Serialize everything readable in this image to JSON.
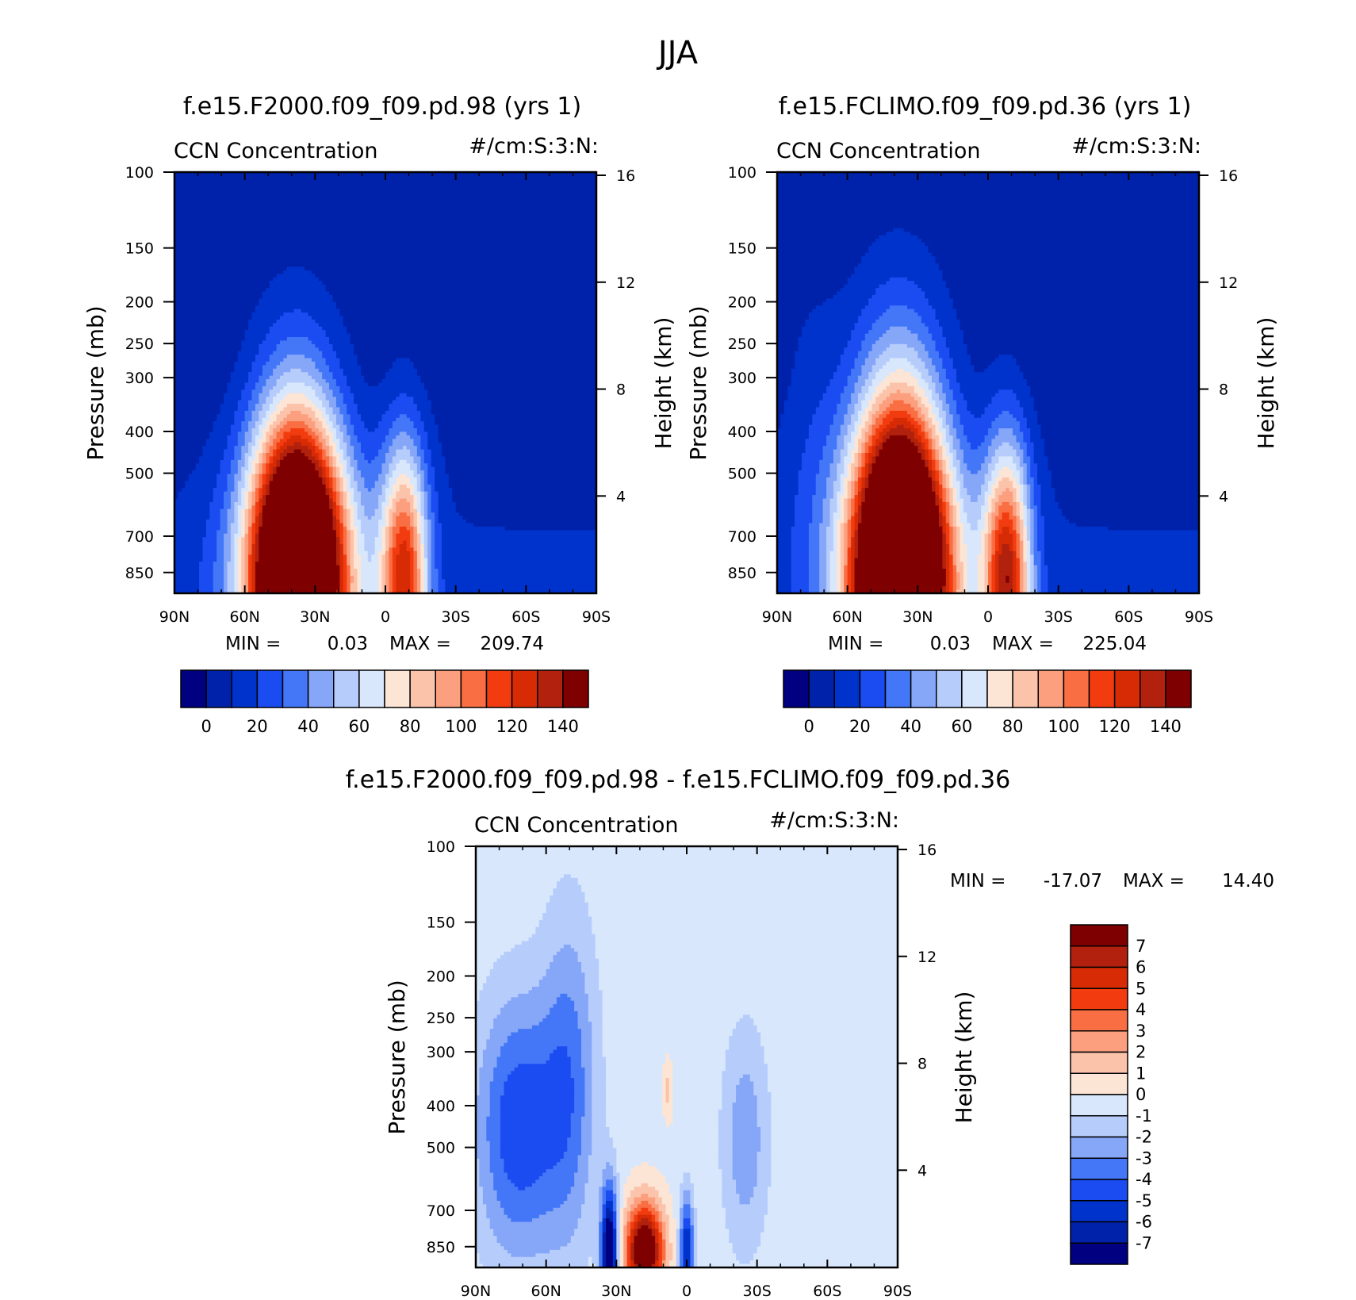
{
  "figure_title": "JJA",
  "palette": {
    "abs": [
      "#000080",
      "#0022aa",
      "#0033cc",
      "#1a4cf2",
      "#4477f7",
      "#86a6f8",
      "#b6cdfc",
      "#d8e7fb",
      "#fde5d6",
      "#fcc3ab",
      "#fb9f7f",
      "#f96e42",
      "#f23c10",
      "#d72b05",
      "#b1210d",
      "#7f0000"
    ],
    "diff": [
      "#000080",
      "#0022aa",
      "#0033cc",
      "#1a4cf2",
      "#4477f7",
      "#86a6f8",
      "#b6cdfc",
      "#d8e7fb",
      "#fde5d6",
      "#fcc3ab",
      "#fb9f7f",
      "#f96e42",
      "#f23c10",
      "#d72b05",
      "#b1210d",
      "#7f0000"
    ]
  },
  "chart_data": [
    {
      "id": "panel-a",
      "type": "heatmap",
      "title": "f.e15.F2000.f09_f09.pd.98 (yrs 1)",
      "variable": "CCN Concentration",
      "units": "#/cm:S:3:N:",
      "xlabel": "",
      "ylabel": "Pressure (mb)",
      "ylabel_right": "Height (km)",
      "x_ticks": [
        "90N",
        "60N",
        "30N",
        "0",
        "30S",
        "60S",
        "90S"
      ],
      "y_ticks": [
        100,
        150,
        200,
        250,
        300,
        400,
        500,
        700,
        850
      ],
      "y_ticks_right": [
        16,
        12,
        8,
        4
      ],
      "min_label": "MIN =",
      "min_value": "0.03",
      "max_label": "MAX =",
      "max_value": "209.74",
      "colorbar_labels": [
        "0",
        "20",
        "40",
        "60",
        "80",
        "100",
        "120",
        "140"
      ],
      "peaks": [
        {
          "lat": 38,
          "p": 870,
          "amp": 205,
          "w": 19,
          "h": 0.9
        },
        {
          "lat": -8,
          "p": 870,
          "amp": 110,
          "w": 10,
          "h": 0.7
        }
      ]
    },
    {
      "id": "panel-b",
      "type": "heatmap",
      "title": "f.e15.FCLIMO.f09_f09.pd.36 (yrs 1)",
      "variable": "CCN Concentration",
      "units": "#/cm:S:3:N:",
      "xlabel": "",
      "ylabel": "Pressure (mb)",
      "ylabel_right": "Height (km)",
      "x_ticks": [
        "90N",
        "60N",
        "30N",
        "0",
        "30S",
        "60S",
        "90S"
      ],
      "y_ticks": [
        100,
        150,
        200,
        250,
        300,
        400,
        500,
        700,
        850
      ],
      "y_ticks_right": [
        16,
        12,
        8,
        4
      ],
      "min_label": "MIN =",
      "min_value": "0.03",
      "max_label": "MAX =",
      "max_value": "225.04",
      "colorbar_labels": [
        "0",
        "20",
        "40",
        "60",
        "80",
        "100",
        "120",
        "140"
      ],
      "peaks": [
        {
          "lat": 38,
          "p": 870,
          "amp": 220,
          "w": 20,
          "h": 1.0
        },
        {
          "lat": -8,
          "p": 870,
          "amp": 120,
          "w": 10,
          "h": 0.7
        }
      ]
    },
    {
      "id": "panel-diff",
      "type": "heatmap",
      "title": "f.e15.F2000.f09_f09.pd.98 - f.e15.FCLIMO.f09_f09.pd.36",
      "variable": "CCN Concentration",
      "units": "#/cm:S:3:N:",
      "xlabel": "",
      "ylabel": "Pressure (mb)",
      "ylabel_right": "Height (km)",
      "x_ticks": [
        "90N",
        "60N",
        "30N",
        "0",
        "30S",
        "60S",
        "90S"
      ],
      "y_ticks": [
        100,
        150,
        200,
        250,
        300,
        400,
        500,
        700,
        850
      ],
      "y_ticks_right": [
        16,
        12,
        8,
        4
      ],
      "min_label": "MIN =",
      "min_value": "-17.07",
      "max_label": "MAX =",
      "max_value": "14.40",
      "colorbar_labels": [
        "7",
        "6",
        "5",
        "4",
        "3",
        "2",
        "1",
        "0",
        "-1",
        "-2",
        "-3",
        "-4",
        "-5",
        "-6",
        "-7"
      ]
    }
  ]
}
